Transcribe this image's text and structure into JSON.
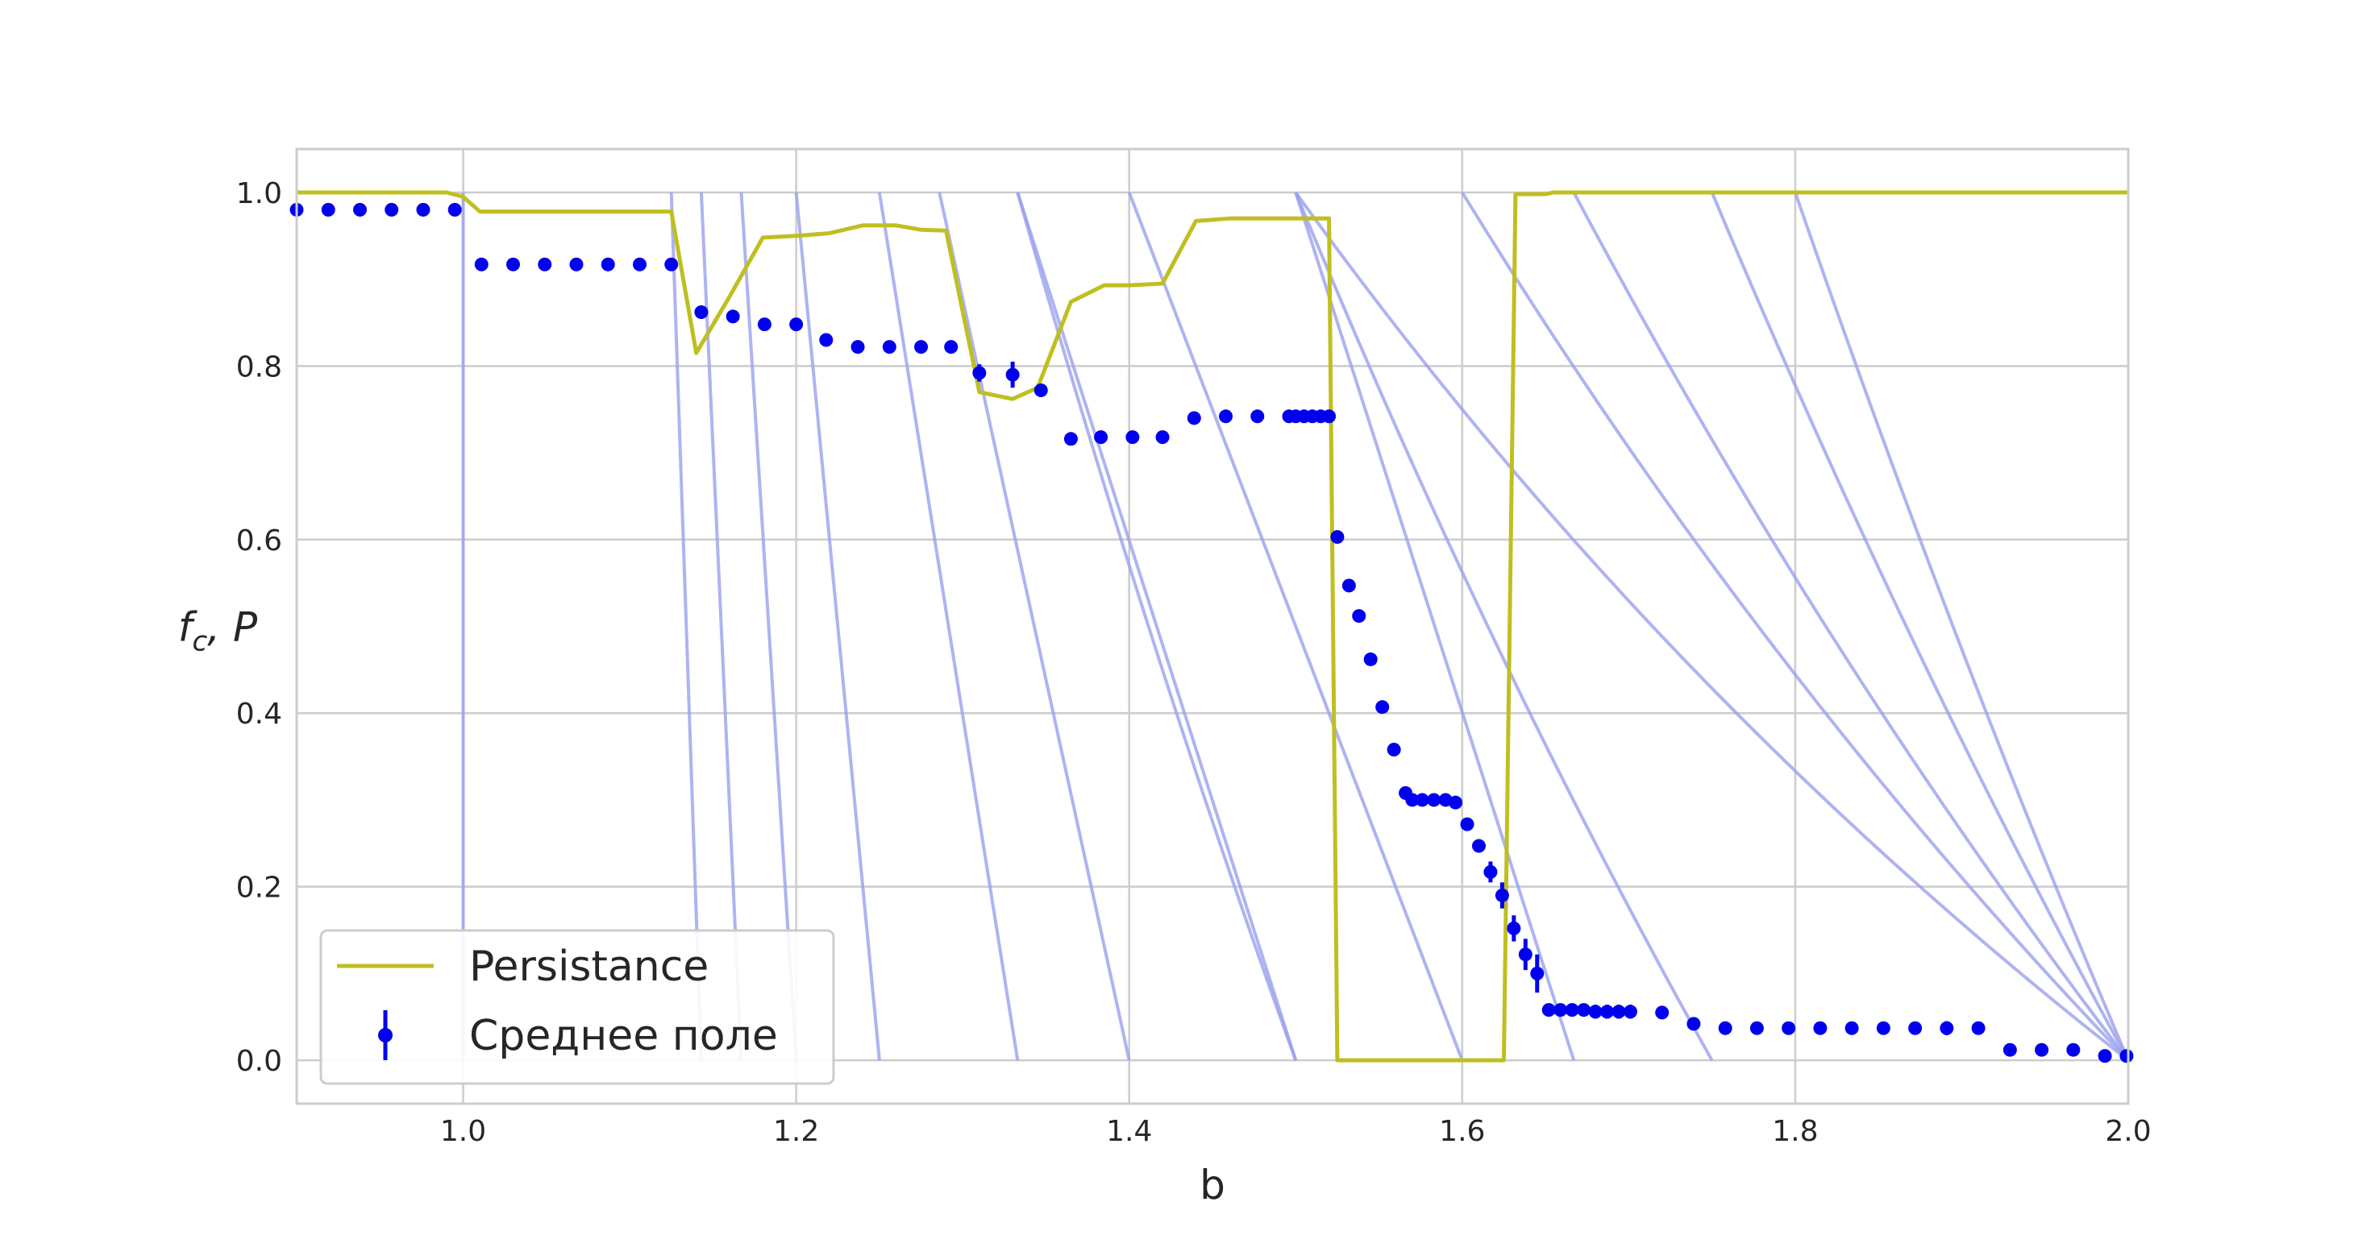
{
  "chart_data": {
    "type": "line",
    "title": "",
    "xlabel": "b",
    "ylabel": {
      "main": "f",
      "sub": "c",
      "rest": ", P"
    },
    "xlim": [
      0.9,
      2.0
    ],
    "ylim": [
      -0.05,
      1.05
    ],
    "xticks": [
      1.0,
      1.2,
      1.4,
      1.6,
      1.8,
      2.0
    ],
    "xtick_labels": [
      "1.0",
      "1.2",
      "1.4",
      "1.6",
      "1.8",
      "2.0"
    ],
    "yticks": [
      0.0,
      0.2,
      0.4,
      0.6,
      0.8,
      1.0
    ],
    "ytick_labels": [
      "0.0",
      "0.2",
      "0.4",
      "0.6",
      "0.8",
      "1.0"
    ],
    "grid": true,
    "legend_position": "lower-left",
    "colors": {
      "persistance": "#bfbf20",
      "mean_field": "#0000ee",
      "guide": "#9aa0ee",
      "grid": "#cccccc",
      "frame": "#cccccc"
    },
    "series": [
      {
        "name": "Persistance",
        "kind": "line",
        "x": [
          0.9,
          0.99,
          1.0,
          1.01,
          1.125,
          1.14,
          1.16,
          1.18,
          1.2,
          1.22,
          1.24,
          1.26,
          1.275,
          1.29,
          1.31,
          1.33,
          1.345,
          1.365,
          1.385,
          1.4,
          1.42,
          1.44,
          1.46,
          1.48,
          1.5,
          1.52,
          1.525,
          1.625,
          1.632,
          1.65,
          1.655,
          1.66,
          1.7,
          2.0
        ],
        "y": [
          1.0,
          1.0,
          0.995,
          0.978,
          0.978,
          0.815,
          0.88,
          0.948,
          0.95,
          0.953,
          0.962,
          0.962,
          0.957,
          0.956,
          0.77,
          0.762,
          0.775,
          0.874,
          0.893,
          0.893,
          0.895,
          0.967,
          0.97,
          0.97,
          0.97,
          0.97,
          0.0,
          0.0,
          0.998,
          0.998,
          1.0,
          1.0,
          1.0,
          1.0
        ]
      },
      {
        "name": "Среднее поле",
        "kind": "errorbar",
        "x": [
          0.9,
          0.919,
          0.938,
          0.957,
          0.976,
          0.995,
          1.011,
          1.03,
          1.049,
          1.068,
          1.087,
          1.106,
          1.125,
          1.143,
          1.162,
          1.181,
          1.2,
          1.218,
          1.237,
          1.256,
          1.275,
          1.293,
          1.31,
          1.33,
          1.347,
          1.365,
          1.383,
          1.402,
          1.42,
          1.439,
          1.458,
          1.477,
          1.496,
          1.5,
          1.505,
          1.51,
          1.515,
          1.52,
          1.525,
          1.532,
          1.538,
          1.545,
          1.552,
          1.559,
          1.566,
          1.57,
          1.576,
          1.583,
          1.59,
          1.596,
          1.603,
          1.61,
          1.617,
          1.624,
          1.631,
          1.638,
          1.645,
          1.652,
          1.659,
          1.666,
          1.673,
          1.68,
          1.687,
          1.694,
          1.701,
          1.72,
          1.739,
          1.758,
          1.777,
          1.796,
          1.815,
          1.834,
          1.853,
          1.872,
          1.891,
          1.91,
          1.929,
          1.948,
          1.967,
          1.986,
          1.999
        ],
        "y": [
          0.98,
          0.98,
          0.98,
          0.98,
          0.98,
          0.98,
          0.917,
          0.917,
          0.917,
          0.917,
          0.917,
          0.917,
          0.917,
          0.862,
          0.857,
          0.848,
          0.848,
          0.83,
          0.822,
          0.822,
          0.822,
          0.822,
          0.792,
          0.79,
          0.772,
          0.716,
          0.718,
          0.718,
          0.718,
          0.74,
          0.742,
          0.742,
          0.742,
          0.742,
          0.742,
          0.742,
          0.742,
          0.742,
          0.603,
          0.547,
          0.512,
          0.462,
          0.407,
          0.358,
          0.308,
          0.3,
          0.3,
          0.3,
          0.3,
          0.297,
          0.272,
          0.247,
          0.217,
          0.19,
          0.152,
          0.122,
          0.1,
          0.058,
          0.058,
          0.058,
          0.058,
          0.056,
          0.056,
          0.056,
          0.056,
          0.055,
          0.042,
          0.037,
          0.037,
          0.037,
          0.037,
          0.037,
          0.037,
          0.037,
          0.037,
          0.037,
          0.012,
          0.012,
          0.012,
          0.005,
          0.005
        ],
        "yerr": [
          0,
          0,
          0,
          0,
          0,
          0,
          0,
          0,
          0,
          0,
          0,
          0,
          0,
          0,
          0,
          0,
          0,
          0,
          0,
          0,
          0,
          0,
          0.01,
          0.015,
          0,
          0,
          0,
          0,
          0,
          0,
          0,
          0,
          0,
          0,
          0,
          0,
          0,
          0,
          0,
          0,
          0,
          0,
          0,
          0,
          0,
          0,
          0,
          0,
          0,
          0,
          0,
          0,
          0.012,
          0.015,
          0.015,
          0.018,
          0.022,
          0,
          0,
          0,
          0,
          0.008,
          0.008,
          0.008,
          0.008,
          0,
          0,
          0,
          0,
          0,
          0,
          0,
          0,
          0,
          0.008,
          0,
          0,
          0,
          0,
          0,
          0
        ]
      }
    ],
    "guide_lines": [
      {
        "kind": "straight",
        "x0": 1.0,
        "x1": 1.0
      },
      {
        "kind": "straight",
        "x0": 1.125,
        "x1": 1.143
      },
      {
        "kind": "straight",
        "x0": 1.143,
        "x1": 1.167
      },
      {
        "kind": "straight",
        "x0": 1.167,
        "x1": 1.2
      },
      {
        "kind": "straight",
        "x0": 1.2,
        "x1": 1.25
      },
      {
        "kind": "straight",
        "x0": 1.25,
        "x1": 1.333
      },
      {
        "kind": "straight",
        "x0": 1.286,
        "x1": 1.4
      },
      {
        "kind": "straight",
        "x0": 1.333,
        "x1": 1.5
      },
      {
        "kind": "curve",
        "x0": 1.333,
        "x1": 1.5
      },
      {
        "kind": "straight",
        "x0": 1.4,
        "x1": 1.6
      },
      {
        "kind": "straight",
        "x0": 1.5,
        "x1": 1.667
      },
      {
        "kind": "curve",
        "x0": 1.5,
        "x1": 1.75
      },
      {
        "kind": "curve",
        "x0": 1.5,
        "x1": 2.0
      },
      {
        "kind": "curve",
        "x0": 1.6,
        "x1": 2.0
      },
      {
        "kind": "curve",
        "x0": 1.667,
        "x1": 2.0
      },
      {
        "kind": "curve",
        "x0": 1.75,
        "x1": 2.0
      },
      {
        "kind": "curve",
        "x0": 1.8,
        "x1": 2.0
      }
    ]
  }
}
